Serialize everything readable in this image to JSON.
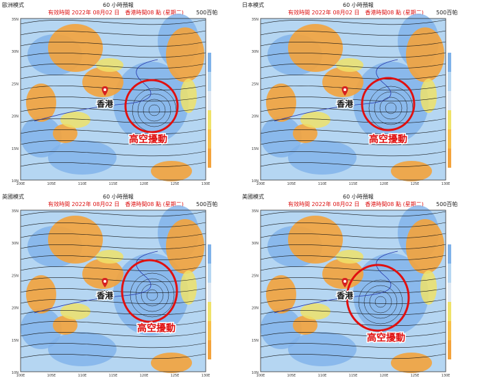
{
  "panels": [
    {
      "model": "歐洲模式",
      "forecast": "60 小時預報",
      "valid": "有效時間 2022年 08月02 日　香港時間08 點 (星期二)",
      "level": "500百帕",
      "hk_label": "香港",
      "disturbance_label": "高空擾動"
    },
    {
      "model": "日本模式",
      "forecast": "60 小時預報",
      "valid": "有效時間 2022年 08月02 日　香港時間08 點 (星期二)",
      "level": "500百帕",
      "hk_label": "香港",
      "disturbance_label": "高空擾動"
    },
    {
      "model": "英國模式",
      "forecast": "60 小時預報",
      "valid": "有效時間 2022年 08月02 日　香港時間08 點 (星期二)",
      "level": "500百帕",
      "hk_label": "香港",
      "disturbance_label": "高空擾動"
    },
    {
      "model": "美國模式",
      "forecast": "60 小時預報",
      "valid": "有效時間 2022年 08月02 日　香港時間08 點 (星期二)",
      "level": "500百帕",
      "hk_label": "香港",
      "disturbance_label": "高空擾動"
    }
  ],
  "lat_labels": [
    "35N",
    "30N",
    "25N",
    "20N",
    "15N",
    "10N"
  ],
  "lon_labels": [
    "100E",
    "105E",
    "110E",
    "115E",
    "120E",
    "125E",
    "130E"
  ],
  "colors": {
    "dry_orange": "#f3a33c",
    "yellow": "#efe26a",
    "moist_blue": "#7fb2ea",
    "light_blue": "#b5d6f2",
    "marker_red": "#e01010"
  }
}
